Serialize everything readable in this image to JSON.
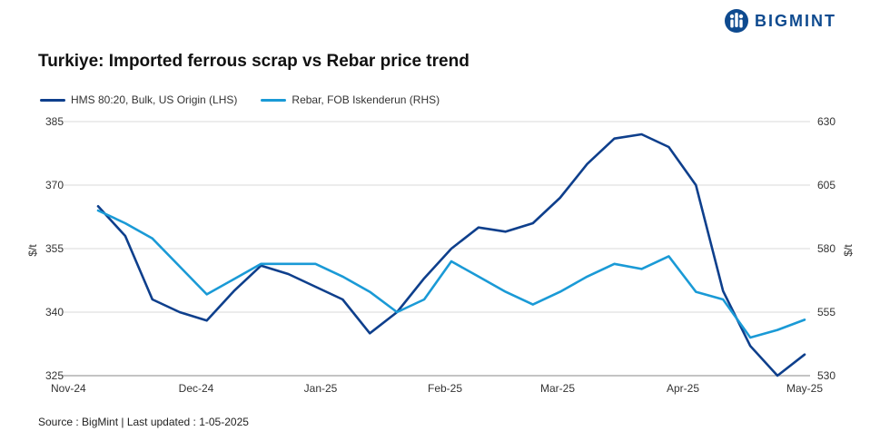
{
  "brand": {
    "name": "BIGMINT",
    "icon": "bigmint-logo-icon",
    "color": "#0e4a8f"
  },
  "chart_data": {
    "type": "line",
    "title": "Turkiye: Imported ferrous scrap vs Rebar price trend",
    "x_tick_labels": [
      "Nov-24",
      "Dec-24",
      "Jan-25",
      "Feb-25",
      "Mar-25",
      "Apr-25",
      "May-25"
    ],
    "y_left": {
      "label": "$/t",
      "ticks": [
        325,
        340,
        355,
        370,
        385
      ],
      "ylim": [
        325,
        385
      ]
    },
    "y_right": {
      "label": "$/t",
      "ticks": [
        530,
        555,
        580,
        605,
        630
      ],
      "ylim": [
        530,
        630
      ]
    },
    "grid": "horizontal",
    "legend_position": "top-left",
    "series": [
      {
        "name": "HMS 80:20, Bulk, US Origin (LHS)",
        "axis": "left",
        "color": "#0e3f8c",
        "values": [
          365,
          358,
          343,
          340,
          338,
          345,
          351,
          349,
          346,
          343,
          335,
          340,
          348,
          355,
          360,
          359,
          361,
          367,
          375,
          381,
          382,
          379,
          370,
          345,
          332,
          325,
          330
        ]
      },
      {
        "name": "Rebar, FOB Iskenderun (RHS)",
        "axis": "right",
        "color": "#1a9ad6",
        "values": [
          595,
          590,
          584,
          573,
          562,
          568,
          574,
          574,
          574,
          569,
          563,
          555,
          560,
          575,
          569,
          563,
          558,
          563,
          569,
          574,
          572,
          577,
          563,
          560,
          545,
          548,
          552
        ]
      }
    ]
  },
  "source_text": "Source : BigMint | Last updated : 1-05-2025"
}
